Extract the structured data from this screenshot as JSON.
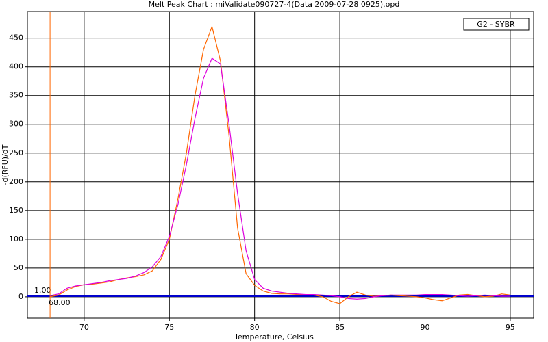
{
  "chart_data": {
    "type": "line",
    "title": "Melt Peak Chart : miValidate090727-4(Data 2009-07-28 0925).opd",
    "xlabel": "Temperature, Celsius",
    "ylabel": "-d(RFU)/dT",
    "legend_text": "G2 - SYBR",
    "x": [
      68,
      68.5,
      69,
      69.5,
      70,
      70.5,
      71,
      71.5,
      72,
      72.5,
      73,
      73.5,
      74,
      74.5,
      75,
      75.5,
      76,
      76.5,
      77,
      77.5,
      78,
      78.5,
      79,
      79.5,
      80,
      80.5,
      81,
      81.5,
      82,
      82.5,
      83,
      83.5,
      84,
      84.5,
      85,
      85.5,
      86,
      86.5,
      87,
      87.5,
      88,
      88.5,
      89,
      89.5,
      90,
      90.5,
      91,
      91.5,
      92,
      92.5,
      93,
      93.5,
      94,
      94.5,
      95
    ],
    "series": [
      {
        "color": "#ff6600",
        "values": [
          0,
          3,
          12,
          18,
          21,
          22,
          24,
          26,
          30,
          33,
          35,
          38,
          45,
          65,
          100,
          170,
          250,
          350,
          430,
          470,
          410,
          280,
          120,
          40,
          20,
          10,
          6,
          5,
          5,
          4,
          4,
          3,
          0,
          -8,
          -12,
          0,
          8,
          3,
          1,
          2,
          3,
          2,
          1,
          0,
          -2,
          -5,
          -7,
          -2,
          3,
          4,
          2,
          0,
          1,
          5,
          3
        ]
      },
      {
        "color": "#dd00dd",
        "values": [
          2,
          5,
          15,
          19,
          21,
          23,
          25,
          28,
          30,
          32,
          36,
          42,
          52,
          70,
          105,
          160,
          230,
          310,
          380,
          415,
          405,
          300,
          180,
          80,
          30,
          15,
          10,
          8,
          6,
          5,
          4,
          4,
          3,
          2,
          0,
          -3,
          -4,
          -3,
          0,
          2,
          3,
          3,
          3,
          3,
          4,
          4,
          4,
          3,
          2,
          1,
          2,
          3,
          2,
          1,
          1
        ]
      }
    ],
    "threshold": {
      "value": 1,
      "label": "1.00",
      "color": "#0000cc"
    },
    "cursor": {
      "value": 68,
      "label": "68.00",
      "color": "#ff6600"
    },
    "xlim": [
      66.67,
      96.37
    ],
    "ylim": [
      -37,
      496
    ],
    "xticks": [
      70,
      75,
      80,
      85,
      90,
      95
    ],
    "yticks": [
      0,
      50,
      100,
      150,
      200,
      250,
      300,
      350,
      400,
      450
    ],
    "grid": true
  }
}
